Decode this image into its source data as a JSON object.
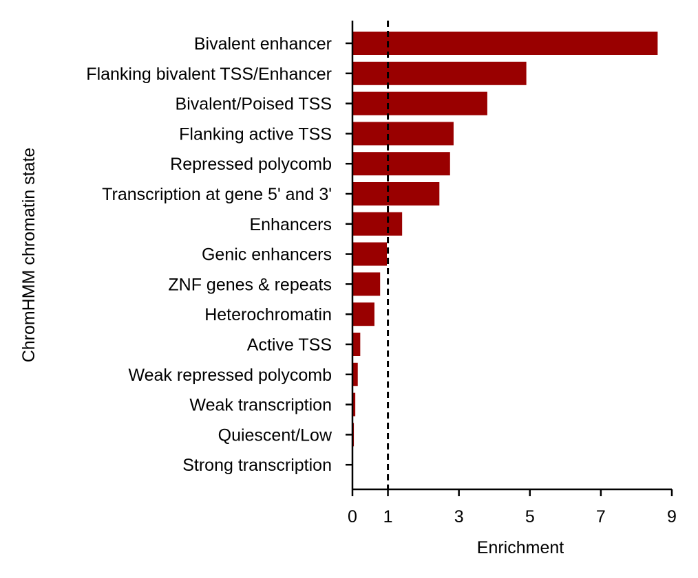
{
  "chart_data": {
    "type": "bar",
    "orientation": "horizontal",
    "categories": [
      "Bivalent enhancer",
      "Flanking bivalent TSS/Enhancer",
      "Bivalent/Poised TSS",
      "Flanking active TSS",
      "Repressed polycomb",
      "Transcription at gene 5' and 3'",
      "Enhancers",
      "Genic enhancers",
      "ZNF genes & repeats",
      "Heterochromatin",
      "Active TSS",
      "Weak repressed polycomb",
      "Weak transcription",
      "Quiescent/Low",
      "Strong transcription"
    ],
    "values": [
      8.6,
      4.9,
      3.8,
      2.85,
      2.75,
      2.45,
      1.4,
      0.97,
      0.78,
      0.62,
      0.22,
      0.15,
      0.08,
      0.04,
      0.01
    ],
    "xlabel": "Enrichment",
    "ylabel": "ChromHMM chromatin state",
    "xlim": [
      0,
      9
    ],
    "xticks": [
      "0",
      "1",
      "3",
      "5",
      "7",
      "9"
    ],
    "reference_line": 1,
    "grid": false,
    "bar_color": "#990000"
  }
}
